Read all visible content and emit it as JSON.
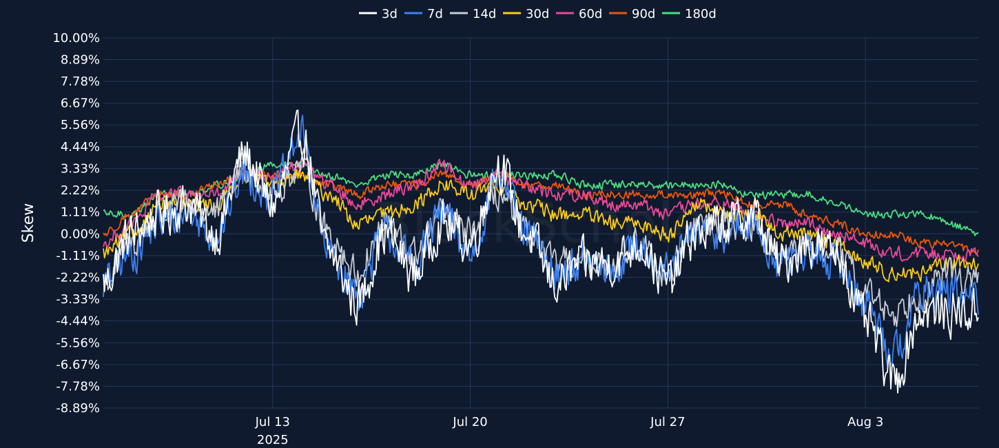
{
  "chart_data": {
    "type": "line",
    "title": "",
    "xlabel": "",
    "ylabel": "Skew",
    "watermark": "BlockScholes",
    "legend_position": "top-center",
    "grid": true,
    "x_start": "2025-07-07",
    "x_end": "2025-08-07",
    "x_ticks": [
      {
        "date": "2025-07-13",
        "label": "Jul 13",
        "sublabel": "2025"
      },
      {
        "date": "2025-07-20",
        "label": "Jul 20",
        "sublabel": ""
      },
      {
        "date": "2025-07-27",
        "label": "Jul 27",
        "sublabel": ""
      },
      {
        "date": "2025-08-03",
        "label": "Aug 3",
        "sublabel": ""
      }
    ],
    "ylim": [
      -8.89,
      10.0
    ],
    "y_ticks": [
      10.0,
      8.89,
      7.78,
      6.67,
      5.56,
      4.44,
      3.33,
      2.22,
      1.11,
      0.0,
      -1.11,
      -2.22,
      -3.33,
      -4.44,
      -5.56,
      -6.67,
      -7.78,
      -8.89
    ],
    "y_tick_labels": [
      "10.00%",
      "8.89%",
      "7.78%",
      "6.67%",
      "5.56%",
      "4.44%",
      "3.33%",
      "2.22%",
      "1.11%",
      "0.00%",
      "-1.11%",
      "-2.22%",
      "-3.33%",
      "-4.44%",
      "-5.56%",
      "-6.67%",
      "-7.78%",
      "-8.89%"
    ],
    "x": [
      "2025-07-07",
      "2025-07-08",
      "2025-07-09",
      "2025-07-10",
      "2025-07-11",
      "2025-07-12",
      "2025-07-13",
      "2025-07-14",
      "2025-07-15",
      "2025-07-16",
      "2025-07-17",
      "2025-07-18",
      "2025-07-19",
      "2025-07-20",
      "2025-07-21",
      "2025-07-22",
      "2025-07-23",
      "2025-07-24",
      "2025-07-25",
      "2025-07-26",
      "2025-07-27",
      "2025-07-28",
      "2025-07-29",
      "2025-07-30",
      "2025-07-31",
      "2025-08-01",
      "2025-08-02",
      "2025-08-03",
      "2025-08-04",
      "2025-08-05",
      "2025-08-06",
      "2025-08-07"
    ],
    "series": [
      {
        "name": "3d",
        "color": "#ffffff",
        "values": [
          -2.5,
          0.0,
          1.0,
          1.5,
          0.0,
          4.0,
          1.5,
          5.0,
          -1.0,
          -3.5,
          0.0,
          -2.0,
          0.5,
          -0.5,
          3.5,
          0.0,
          -2.5,
          -1.5,
          -1.5,
          -0.5,
          -2.5,
          0.0,
          0.5,
          1.0,
          -1.5,
          -0.5,
          -1.0,
          -4.5,
          -7.5,
          -4.0,
          -4.0,
          -4.0
        ]
      },
      {
        "name": "7d",
        "color": "#3b82f6",
        "values": [
          -2.5,
          -1.0,
          0.5,
          1.0,
          0.0,
          3.0,
          2.0,
          5.0,
          -1.0,
          -3.0,
          0.0,
          -1.5,
          1.0,
          -1.0,
          3.0,
          0.0,
          -2.0,
          -1.5,
          -2.0,
          -0.5,
          -2.0,
          0.0,
          0.0,
          0.5,
          -1.5,
          -1.0,
          -1.5,
          -3.5,
          -6.0,
          -3.0,
          -3.0,
          -3.5
        ]
      },
      {
        "name": "14d",
        "color": "#c7ccd6",
        "values": [
          -2.5,
          -0.5,
          1.0,
          1.5,
          1.0,
          3.5,
          2.0,
          3.5,
          0.0,
          -2.0,
          0.5,
          -1.0,
          1.0,
          0.0,
          2.0,
          0.0,
          -1.5,
          -1.5,
          -1.5,
          -0.5,
          -2.0,
          0.5,
          0.5,
          0.5,
          -1.5,
          -0.5,
          -1.0,
          -3.0,
          -4.0,
          -3.0,
          -2.0,
          -2.5
        ]
      },
      {
        "name": "30d",
        "color": "#facc15",
        "values": [
          -1.0,
          0.0,
          1.5,
          1.5,
          1.5,
          3.0,
          2.5,
          3.0,
          2.0,
          0.5,
          1.0,
          1.5,
          2.5,
          2.0,
          2.5,
          1.5,
          1.0,
          1.0,
          0.5,
          0.5,
          0.0,
          1.5,
          1.0,
          1.0,
          0.0,
          0.0,
          -0.5,
          -1.5,
          -2.0,
          -2.0,
          -1.5,
          -1.5
        ]
      },
      {
        "name": "60d",
        "color": "#ec4899",
        "values": [
          -0.5,
          0.5,
          2.0,
          2.0,
          2.0,
          3.0,
          3.0,
          3.5,
          2.5,
          1.5,
          2.0,
          2.5,
          3.5,
          2.5,
          3.0,
          2.5,
          2.0,
          2.0,
          1.5,
          1.5,
          1.0,
          1.5,
          1.5,
          1.0,
          0.5,
          0.5,
          0.0,
          -0.5,
          -1.0,
          -1.0,
          -1.0,
          -1.0
        ]
      },
      {
        "name": "90d",
        "color": "#ea580c",
        "values": [
          0.0,
          1.0,
          2.0,
          2.0,
          2.5,
          3.0,
          3.0,
          3.0,
          2.5,
          2.0,
          2.5,
          2.5,
          3.0,
          2.5,
          3.0,
          2.5,
          2.5,
          2.0,
          2.0,
          2.0,
          2.0,
          2.0,
          2.0,
          1.5,
          1.5,
          1.0,
          0.5,
          0.0,
          0.0,
          -0.5,
          -0.5,
          -1.0
        ]
      },
      {
        "name": "180d",
        "color": "#4ade80",
        "values": [
          1.0,
          1.0,
          2.0,
          2.0,
          2.5,
          3.0,
          3.5,
          3.5,
          3.0,
          2.5,
          3.0,
          3.0,
          3.5,
          3.0,
          3.0,
          3.0,
          3.0,
          2.5,
          2.5,
          2.5,
          2.5,
          2.5,
          2.5,
          2.0,
          2.0,
          2.0,
          1.5,
          1.0,
          1.0,
          1.0,
          0.5,
          0.0
        ]
      }
    ]
  }
}
